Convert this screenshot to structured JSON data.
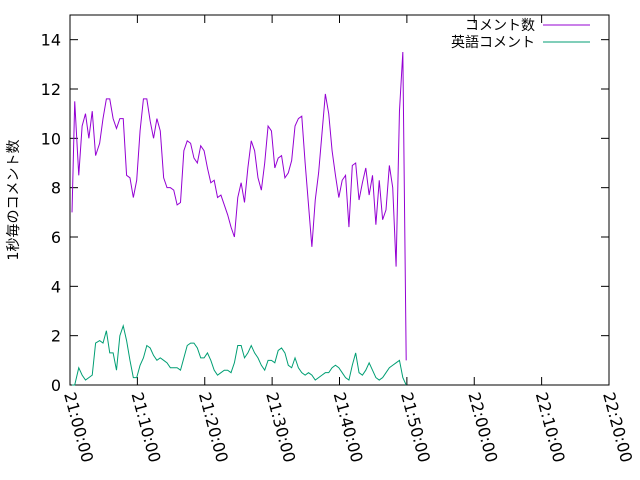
{
  "chart_data": {
    "type": "line",
    "ylabel": "1秒毎のコメント数",
    "xlabel": "",
    "ylim": [
      0,
      15
    ],
    "xlim_min": [
      0,
      80
    ],
    "y_ticks": [
      0,
      2,
      4,
      6,
      8,
      10,
      12,
      14
    ],
    "x_ticks_min": [
      0,
      10,
      20,
      30,
      40,
      50,
      60,
      70,
      80
    ],
    "x_tick_labels": [
      "21:00:00",
      "21:10:00",
      "21:20:00",
      "21:30:00",
      "21:40:00",
      "21:50:00",
      "22:00:00",
      "22:10:00",
      "22:20:00"
    ],
    "grid": false,
    "legend_position": "top-right",
    "series": [
      {
        "name": "コメント数",
        "color": "#9400d3",
        "points_min": [
          [
            0.3,
            7.0
          ],
          [
            0.7,
            11.5
          ],
          [
            1.3,
            8.5
          ],
          [
            1.8,
            10.5
          ],
          [
            2.3,
            11.0
          ],
          [
            2.8,
            10.0
          ],
          [
            3.3,
            11.1
          ],
          [
            3.8,
            9.3
          ],
          [
            4.4,
            9.8
          ],
          [
            4.9,
            10.8
          ],
          [
            5.4,
            11.6
          ],
          [
            5.9,
            11.6
          ],
          [
            6.4,
            10.8
          ],
          [
            6.9,
            10.4
          ],
          [
            7.4,
            10.8
          ],
          [
            7.9,
            10.8
          ],
          [
            8.4,
            8.5
          ],
          [
            8.9,
            8.4
          ],
          [
            9.4,
            7.6
          ],
          [
            9.9,
            8.3
          ],
          [
            10.4,
            10.3
          ],
          [
            10.9,
            11.6
          ],
          [
            11.4,
            11.6
          ],
          [
            11.9,
            10.7
          ],
          [
            12.4,
            10.0
          ],
          [
            12.9,
            10.8
          ],
          [
            13.4,
            10.3
          ],
          [
            13.9,
            8.4
          ],
          [
            14.4,
            8.0
          ],
          [
            14.9,
            8.0
          ],
          [
            15.4,
            7.9
          ],
          [
            15.9,
            7.3
          ],
          [
            16.4,
            7.4
          ],
          [
            16.9,
            9.5
          ],
          [
            17.4,
            9.9
          ],
          [
            17.9,
            9.8
          ],
          [
            18.4,
            9.2
          ],
          [
            18.9,
            9.0
          ],
          [
            19.4,
            9.7
          ],
          [
            19.9,
            9.5
          ],
          [
            20.4,
            8.8
          ],
          [
            20.9,
            8.2
          ],
          [
            21.4,
            8.3
          ],
          [
            21.9,
            7.6
          ],
          [
            22.4,
            7.7
          ],
          [
            22.9,
            7.3
          ],
          [
            23.4,
            6.9
          ],
          [
            23.9,
            6.4
          ],
          [
            24.4,
            6.0
          ],
          [
            24.9,
            7.6
          ],
          [
            25.4,
            8.2
          ],
          [
            25.9,
            7.4
          ],
          [
            26.4,
            8.8
          ],
          [
            26.9,
            9.9
          ],
          [
            27.4,
            9.5
          ],
          [
            27.9,
            8.4
          ],
          [
            28.4,
            7.9
          ],
          [
            28.9,
            9.0
          ],
          [
            29.4,
            10.5
          ],
          [
            29.9,
            10.3
          ],
          [
            30.4,
            8.8
          ],
          [
            30.9,
            9.2
          ],
          [
            31.4,
            9.3
          ],
          [
            31.9,
            8.4
          ],
          [
            32.4,
            8.6
          ],
          [
            32.9,
            9.1
          ],
          [
            33.4,
            10.5
          ],
          [
            33.9,
            10.8
          ],
          [
            34.4,
            10.9
          ],
          [
            34.9,
            9.0
          ],
          [
            35.4,
            7.3
          ],
          [
            35.9,
            5.6
          ],
          [
            36.4,
            7.5
          ],
          [
            36.9,
            8.6
          ],
          [
            37.4,
            10.2
          ],
          [
            37.9,
            11.8
          ],
          [
            38.4,
            11.0
          ],
          [
            38.9,
            9.5
          ],
          [
            39.4,
            8.5
          ],
          [
            39.9,
            7.6
          ],
          [
            40.4,
            8.3
          ],
          [
            40.9,
            8.5
          ],
          [
            41.4,
            6.4
          ],
          [
            41.9,
            8.9
          ],
          [
            42.4,
            9.0
          ],
          [
            42.9,
            7.5
          ],
          [
            43.4,
            8.2
          ],
          [
            43.9,
            8.8
          ],
          [
            44.4,
            7.7
          ],
          [
            44.9,
            8.5
          ],
          [
            45.4,
            6.5
          ],
          [
            45.9,
            8.3
          ],
          [
            46.4,
            6.7
          ],
          [
            46.9,
            7.1
          ],
          [
            47.4,
            8.9
          ],
          [
            47.9,
            8.0
          ],
          [
            48.4,
            4.8
          ],
          [
            48.9,
            11.1
          ],
          [
            49.4,
            13.5
          ],
          [
            49.9,
            1.0
          ]
        ]
      },
      {
        "name": "英語コメント",
        "color": "#009e73",
        "points_min": [
          [
            0.3,
            0.0
          ],
          [
            0.7,
            0.0
          ],
          [
            1.3,
            0.7
          ],
          [
            1.8,
            0.4
          ],
          [
            2.3,
            0.2
          ],
          [
            2.8,
            0.3
          ],
          [
            3.3,
            0.4
          ],
          [
            3.8,
            1.7
          ],
          [
            4.4,
            1.8
          ],
          [
            4.9,
            1.7
          ],
          [
            5.4,
            2.2
          ],
          [
            5.9,
            1.3
          ],
          [
            6.4,
            1.3
          ],
          [
            6.9,
            0.6
          ],
          [
            7.4,
            2.0
          ],
          [
            7.9,
            2.4
          ],
          [
            8.4,
            1.8
          ],
          [
            8.9,
            1.0
          ],
          [
            9.4,
            0.3
          ],
          [
            9.9,
            0.3
          ],
          [
            10.4,
            0.8
          ],
          [
            10.9,
            1.1
          ],
          [
            11.4,
            1.6
          ],
          [
            11.9,
            1.5
          ],
          [
            12.4,
            1.2
          ],
          [
            12.9,
            1.0
          ],
          [
            13.4,
            1.1
          ],
          [
            13.9,
            1.0
          ],
          [
            14.4,
            0.9
          ],
          [
            14.9,
            0.7
          ],
          [
            15.4,
            0.7
          ],
          [
            15.9,
            0.7
          ],
          [
            16.4,
            0.6
          ],
          [
            16.9,
            1.1
          ],
          [
            17.4,
            1.6
          ],
          [
            17.9,
            1.7
          ],
          [
            18.4,
            1.7
          ],
          [
            18.9,
            1.5
          ],
          [
            19.4,
            1.1
          ],
          [
            19.9,
            1.1
          ],
          [
            20.4,
            1.3
          ],
          [
            20.9,
            1.0
          ],
          [
            21.4,
            0.6
          ],
          [
            21.9,
            0.4
          ],
          [
            22.4,
            0.5
          ],
          [
            22.9,
            0.6
          ],
          [
            23.4,
            0.6
          ],
          [
            23.9,
            0.5
          ],
          [
            24.4,
            0.9
          ],
          [
            24.9,
            1.6
          ],
          [
            25.4,
            1.6
          ],
          [
            25.9,
            1.1
          ],
          [
            26.4,
            1.3
          ],
          [
            26.9,
            1.6
          ],
          [
            27.4,
            1.3
          ],
          [
            27.9,
            1.1
          ],
          [
            28.4,
            0.8
          ],
          [
            28.9,
            0.6
          ],
          [
            29.4,
            1.0
          ],
          [
            29.9,
            1.0
          ],
          [
            30.4,
            0.9
          ],
          [
            30.9,
            1.4
          ],
          [
            31.4,
            1.5
          ],
          [
            31.9,
            1.3
          ],
          [
            32.4,
            0.8
          ],
          [
            32.9,
            0.7
          ],
          [
            33.4,
            1.1
          ],
          [
            33.9,
            0.7
          ],
          [
            34.4,
            0.5
          ],
          [
            34.9,
            0.4
          ],
          [
            35.4,
            0.5
          ],
          [
            35.9,
            0.4
          ],
          [
            36.4,
            0.2
          ],
          [
            36.9,
            0.3
          ],
          [
            37.4,
            0.4
          ],
          [
            37.9,
            0.5
          ],
          [
            38.4,
            0.5
          ],
          [
            38.9,
            0.7
          ],
          [
            39.4,
            0.8
          ],
          [
            39.9,
            0.7
          ],
          [
            40.4,
            0.5
          ],
          [
            40.9,
            0.3
          ],
          [
            41.4,
            0.2
          ],
          [
            41.9,
            0.8
          ],
          [
            42.4,
            1.3
          ],
          [
            42.9,
            0.5
          ],
          [
            43.4,
            0.4
          ],
          [
            43.9,
            0.6
          ],
          [
            44.4,
            0.9
          ],
          [
            44.9,
            0.6
          ],
          [
            45.4,
            0.3
          ],
          [
            45.9,
            0.2
          ],
          [
            46.4,
            0.3
          ],
          [
            46.9,
            0.5
          ],
          [
            47.4,
            0.7
          ],
          [
            47.9,
            0.8
          ],
          [
            48.4,
            0.9
          ],
          [
            48.9,
            1.0
          ],
          [
            49.4,
            0.3
          ],
          [
            49.9,
            0.0
          ]
        ]
      }
    ]
  }
}
